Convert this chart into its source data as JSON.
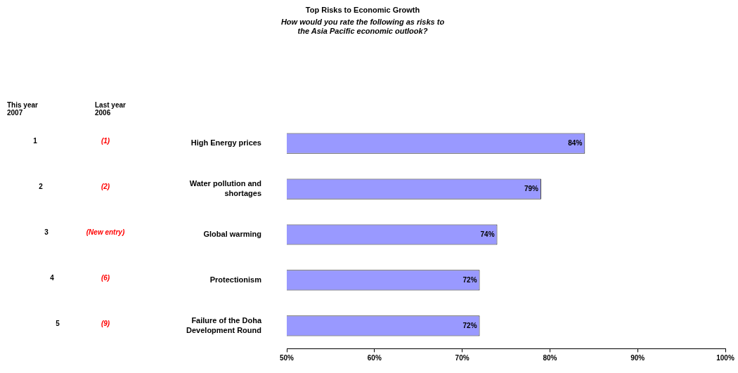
{
  "chart_data": {
    "type": "bar",
    "orientation": "horizontal",
    "title": "Top Risks to Economic Growth",
    "subtitle": "How would you rate the following as risks to the Asia Pacific economic outlook?",
    "categories": [
      "High Energy prices",
      "Water pollution and shortages",
      "Global warming",
      "Protectionism",
      "Failure of the Doha Development Round"
    ],
    "values": [
      84,
      79,
      74,
      72,
      72
    ],
    "color": "#9999ff",
    "value_labels": [
      "84%",
      "79%",
      "74%",
      "72%",
      "72%"
    ],
    "xlim": [
      50,
      100
    ],
    "xticks": [
      {
        "value": 50,
        "label": "50%"
      },
      {
        "value": 60,
        "label": "60%"
      },
      {
        "value": 70,
        "label": "70%"
      },
      {
        "value": 80,
        "label": "80%"
      },
      {
        "value": 90,
        "label": "90%"
      },
      {
        "value": 100,
        "label": "100%"
      }
    ],
    "grid": false,
    "legend": false,
    "annotations": [
      "This year 2007",
      "Last year 2006",
      "1",
      "(1)",
      "2",
      "(2)",
      "3",
      "(New entry)",
      "4",
      "(6)",
      "5",
      "(9)"
    ]
  }
}
